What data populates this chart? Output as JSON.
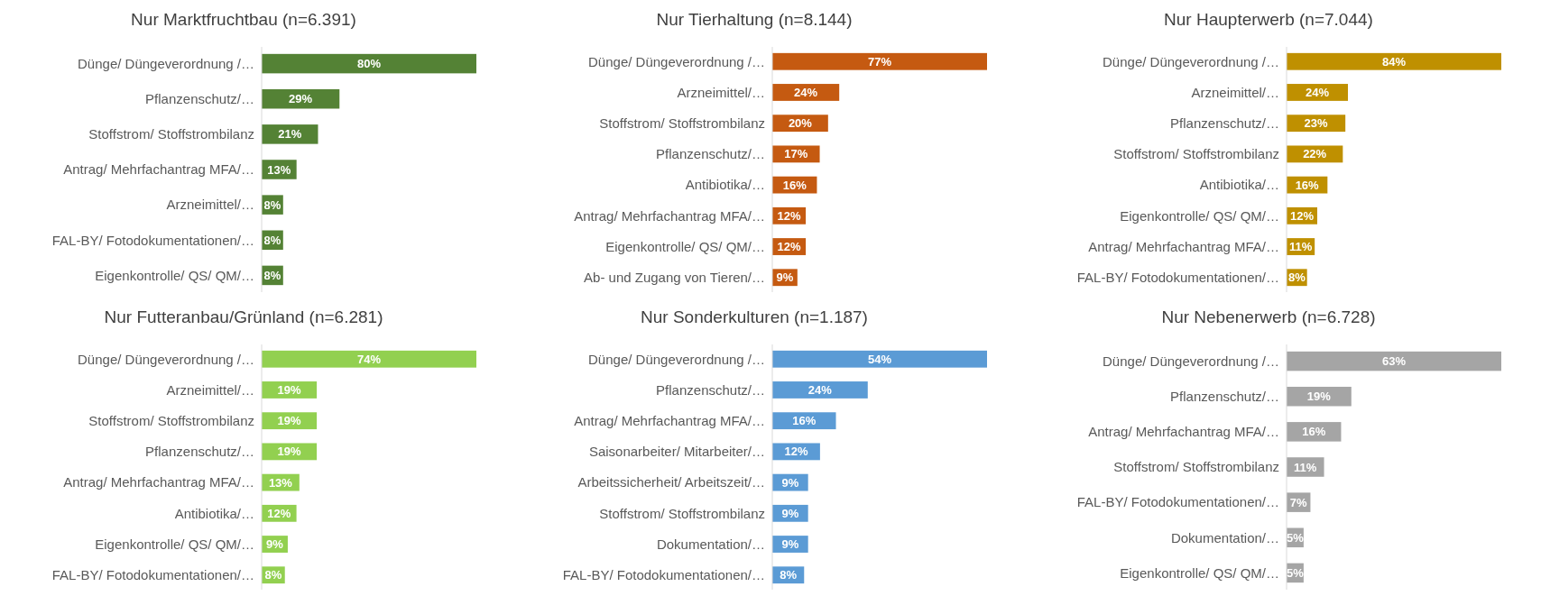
{
  "chart_data": [
    {
      "type": "bar",
      "orientation": "horizontal",
      "title": "Nur Marktfruchtbau (n=6.391)",
      "categories": [
        "Dünge/ Düngeverordnung /…",
        "Pflanzenschutz/…",
        "Stoffstrom/ Stoffstrombilanz",
        "Antrag/ Mehrfachantrag MFA/…",
        "Arzneimittel/…",
        "FAL-BY/ Fotodokumentationen/…",
        "Eigenkontrolle/  QS/ QM/…"
      ],
      "values": [
        80,
        29,
        21,
        13,
        8,
        8,
        8
      ],
      "value_labels": [
        "80%",
        "29%",
        "21%",
        "13%",
        "8%",
        "8%",
        "8%"
      ],
      "color": "#548235"
    },
    {
      "type": "bar",
      "orientation": "horizontal",
      "title": "Nur Tierhaltung (n=8.144)",
      "categories": [
        "Dünge/ Düngeverordnung /…",
        "Arzneimittel/…",
        "Stoffstrom/ Stoffstrombilanz",
        "Pflanzenschutz/…",
        "Antibiotika/…",
        "Antrag/ Mehrfachantrag MFA/…",
        "Eigenkontrolle/  QS/ QM/…",
        "Ab- und Zugang von Tieren/…"
      ],
      "values": [
        77,
        24,
        20,
        17,
        16,
        12,
        12,
        9
      ],
      "value_labels": [
        "77%",
        "24%",
        "20%",
        "17%",
        "16%",
        "12%",
        "12%",
        "9%"
      ],
      "color": "#c55a11"
    },
    {
      "type": "bar",
      "orientation": "horizontal",
      "title": "Nur Haupterwerb (n=7.044)",
      "categories": [
        "Dünge/ Düngeverordnung /…",
        "Arzneimittel/…",
        "Pflanzenschutz/…",
        "Stoffstrom/ Stoffstrombilanz",
        "Antibiotika/…",
        "Eigenkontrolle/  QS/ QM/…",
        "Antrag/ Mehrfachantrag MFA/…",
        "FAL-BY/ Fotodokumentationen/…"
      ],
      "values": [
        84,
        24,
        23,
        22,
        16,
        12,
        11,
        8
      ],
      "value_labels": [
        "84%",
        "24%",
        "23%",
        "22%",
        "16%",
        "12%",
        "11%",
        "8%"
      ],
      "color": "#bf9000"
    },
    {
      "type": "bar",
      "orientation": "horizontal",
      "title": "Nur Futteranbau/Grünland (n=6.281)",
      "categories": [
        "Dünge/ Düngeverordnung /…",
        "Arzneimittel/…",
        "Stoffstrom/ Stoffstrombilanz",
        "Pflanzenschutz/…",
        "Antrag/ Mehrfachantrag MFA/…",
        "Antibiotika/…",
        "Eigenkontrolle/  QS/ QM/…",
        "FAL-BY/ Fotodokumentationen/…"
      ],
      "values": [
        74,
        19,
        19,
        19,
        13,
        12,
        9,
        8
      ],
      "value_labels": [
        "74%",
        "19%",
        "19%",
        "19%",
        "13%",
        "12%",
        "9%",
        "8%"
      ],
      "color": "#92d050"
    },
    {
      "type": "bar",
      "orientation": "horizontal",
      "title": "Nur Sonderkulturen (n=1.187)",
      "categories": [
        "Dünge/ Düngeverordnung /…",
        "Pflanzenschutz/…",
        "Antrag/ Mehrfachantrag MFA/…",
        "Saisonarbeiter/ Mitarbeiter/…",
        "Arbeitssicherheit/ Arbeitszeit/…",
        "Stoffstrom/ Stoffstrombilanz",
        "Dokumentation/…",
        "FAL-BY/ Fotodokumentationen/…"
      ],
      "values": [
        54,
        24,
        16,
        12,
        9,
        9,
        9,
        8
      ],
      "value_labels": [
        "54%",
        "24%",
        "16%",
        "12%",
        "9%",
        "9%",
        "9%",
        "8%"
      ],
      "color": "#5b9bd5"
    },
    {
      "type": "bar",
      "orientation": "horizontal",
      "title": "Nur Nebenerwerb (n=6.728)",
      "categories": [
        "Dünge/ Düngeverordnung /…",
        "Pflanzenschutz/…",
        "Antrag/ Mehrfachantrag MFA/…",
        "Stoffstrom/ Stoffstrombilanz",
        "FAL-BY/ Fotodokumentationen/…",
        "Dokumentation/…",
        "Eigenkontrolle/  QS/ QM/…"
      ],
      "values": [
        63,
        19,
        16,
        11,
        7,
        5,
        5
      ],
      "value_labels": [
        "63%",
        "19%",
        "16%",
        "11%",
        "7%",
        "5%",
        "5%"
      ],
      "color": "#a5a5a5"
    }
  ]
}
